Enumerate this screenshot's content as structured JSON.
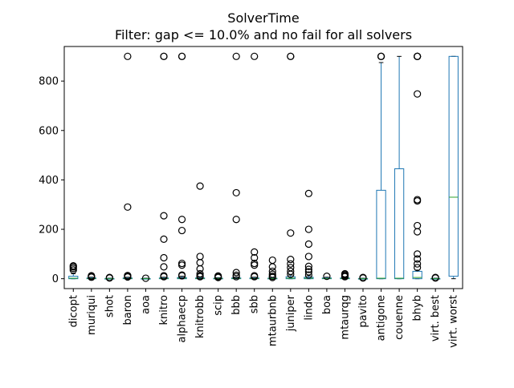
{
  "chart_data": {
    "type": "box",
    "title": "SolverTime",
    "subtitle": "Filter: gap <= 10.0% and no fail for all solvers",
    "xlabel": "",
    "ylabel": "",
    "ylim": [
      -40,
      940
    ],
    "yticks": [
      0,
      200,
      400,
      600,
      800
    ],
    "grid": false,
    "colors": {
      "box": "#1f77b4",
      "median": "#2ca02c",
      "flier": "#000000",
      "axes": "#000000"
    },
    "categories": [
      "dicopt",
      "muriqui",
      "shot",
      "baron",
      "aoa",
      "knitro",
      "alphaecp",
      "knitrobb",
      "scip",
      "bbb",
      "sbb",
      "mtaurbnb",
      "juniper",
      "lindo",
      "boa",
      "mtaurqg",
      "pavito",
      "antigone",
      "couenne",
      "bhyb",
      "virt. best",
      "virt. worst"
    ],
    "series": [
      {
        "label": "dicopt",
        "q1": 0,
        "median": 2,
        "q3": 10,
        "whislo": 0,
        "whishi": 20,
        "fliers": [
          35,
          42,
          48,
          52
        ]
      },
      {
        "label": "muriqui",
        "q1": 0,
        "median": 1,
        "q3": 3,
        "whislo": 0,
        "whishi": 6,
        "fliers": [
          6,
          9,
          12
        ]
      },
      {
        "label": "shot",
        "q1": 0,
        "median": 0,
        "q3": 1,
        "whislo": 0,
        "whishi": 2,
        "fliers": [
          3,
          5
        ]
      },
      {
        "label": "baron",
        "q1": 0,
        "median": 1,
        "q3": 3,
        "whislo": 0,
        "whishi": 6,
        "fliers": [
          7,
          10,
          13,
          290,
          900
        ]
      },
      {
        "label": "aoa",
        "q1": 0,
        "median": 0,
        "q3": 1,
        "whislo": 0,
        "whishi": 2,
        "fliers": [
          2
        ]
      },
      {
        "label": "knitro",
        "q1": 0,
        "median": 1,
        "q3": 3,
        "whislo": 0,
        "whishi": 6,
        "fliers": [
          8,
          12,
          48,
          85,
          160,
          255,
          900,
          900
        ]
      },
      {
        "label": "alphaecp",
        "q1": 0,
        "median": 2,
        "q3": 5,
        "whislo": 0,
        "whishi": 10,
        "fliers": [
          12,
          15,
          55,
          62,
          195,
          240,
          900,
          900
        ]
      },
      {
        "label": "knitrobb",
        "q1": 0,
        "median": 1,
        "q3": 3,
        "whislo": 0,
        "whishi": 6,
        "fliers": [
          8,
          12,
          20,
          40,
          65,
          90,
          375
        ]
      },
      {
        "label": "scip",
        "q1": 0,
        "median": 1,
        "q3": 2,
        "whislo": 0,
        "whishi": 4,
        "fliers": [
          5,
          8,
          11
        ]
      },
      {
        "label": "bbb",
        "q1": 0,
        "median": 1,
        "q3": 3,
        "whislo": 0,
        "whishi": 6,
        "fliers": [
          8,
          14,
          25,
          240,
          348,
          900
        ]
      },
      {
        "label": "sbb",
        "q1": 0,
        "median": 1,
        "q3": 3,
        "whislo": 0,
        "whishi": 6,
        "fliers": [
          8,
          12,
          55,
          62,
          85,
          108,
          900
        ]
      },
      {
        "label": "mtaurbnb",
        "q1": 0,
        "median": 1,
        "q3": 2,
        "whislo": 0,
        "whishi": 4,
        "fliers": [
          5,
          10,
          18,
          30,
          48,
          75
        ]
      },
      {
        "label": "juniper",
        "q1": 0,
        "median": 2,
        "q3": 8,
        "whislo": 0,
        "whishi": 15,
        "fliers": [
          18,
          30,
          45,
          60,
          78,
          185,
          900,
          900
        ]
      },
      {
        "label": "lindo",
        "q1": 0,
        "median": 2,
        "q3": 6,
        "whislo": 0,
        "whishi": 12,
        "fliers": [
          15,
          28,
          38,
          50,
          90,
          140,
          200,
          345
        ]
      },
      {
        "label": "boa",
        "q1": 0,
        "median": 1,
        "q3": 3,
        "whislo": 0,
        "whishi": 6,
        "fliers": [
          10
        ]
      },
      {
        "label": "mtaurqg",
        "q1": 0,
        "median": 1,
        "q3": 3,
        "whislo": 0,
        "whishi": 6,
        "fliers": [
          8,
          12,
          16,
          20
        ]
      },
      {
        "label": "pavito",
        "q1": 0,
        "median": 0,
        "q3": 1,
        "whislo": 0,
        "whishi": 2,
        "fliers": [
          3,
          5
        ]
      },
      {
        "label": "antigone",
        "q1": 0,
        "median": 2,
        "q3": 358,
        "whislo": 0,
        "whishi": 875,
        "fliers": [
          900,
          900,
          900
        ]
      },
      {
        "label": "couenne",
        "q1": 0,
        "median": 2,
        "q3": 445,
        "whislo": 0,
        "whishi": 900,
        "fliers": []
      },
      {
        "label": "bhyb",
        "q1": 0,
        "median": 5,
        "q3": 30,
        "whislo": 0,
        "whishi": 35,
        "fliers": [
          45,
          60,
          80,
          100,
          190,
          215,
          315,
          320,
          748,
          900,
          900,
          900,
          900
        ]
      },
      {
        "label": "virt. best",
        "q1": 0,
        "median": 0,
        "q3": 1,
        "whislo": 0,
        "whishi": 2,
        "fliers": [
          3,
          5
        ]
      },
      {
        "label": "virt. worst",
        "q1": 10,
        "median": 330,
        "q3": 900,
        "whislo": 0,
        "whishi": 900,
        "fliers": []
      }
    ]
  }
}
